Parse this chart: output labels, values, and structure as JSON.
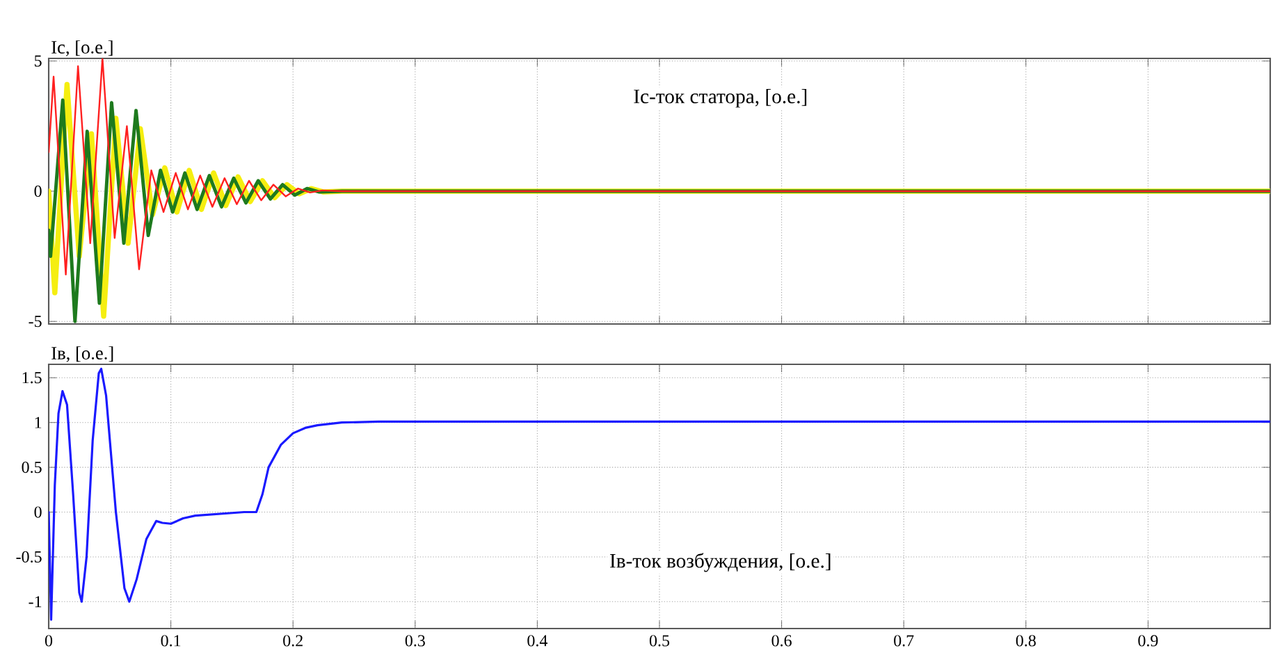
{
  "chart_data": [
    {
      "type": "line",
      "ylabel": "Ic, [о.е.]",
      "annotations": [
        "Ic-ток статора, [о.е.]"
      ],
      "xlim": [
        0,
        1
      ],
      "ylim": [
        -5.1,
        5.1
      ],
      "xticks": [
        0,
        0.1,
        0.2,
        0.3,
        0.4,
        0.5,
        0.6,
        0.7,
        0.8,
        0.9
      ],
      "yticks": [
        -5,
        0,
        5
      ],
      "grid": true,
      "tick_labels": "y",
      "series": [
        {
          "color": "#f5ee10",
          "x": [
            0,
            0.005,
            0.015,
            0.025,
            0.035,
            0.045,
            0.055,
            0.065,
            0.075,
            0.085,
            0.095,
            0.105,
            0.115,
            0.125,
            0.135,
            0.145,
            0.155,
            0.165,
            0.175,
            0.185,
            0.195,
            0.205,
            0.215,
            0.225,
            0.24,
            0.5,
            1.0
          ],
          "values": [
            0,
            -3.9,
            4.1,
            -2.5,
            2.2,
            -4.8,
            2.8,
            -2.0,
            2.4,
            -0.9,
            0.9,
            -0.8,
            0.8,
            -0.7,
            0.7,
            -0.55,
            0.55,
            -0.4,
            0.4,
            -0.25,
            0.25,
            -0.1,
            0.1,
            -0.03,
            0,
            0,
            0
          ]
        },
        {
          "color": "#1e7a1e",
          "x": [
            0,
            0.0015,
            0.0115,
            0.0215,
            0.0315,
            0.0415,
            0.0515,
            0.0615,
            0.0715,
            0.0815,
            0.0915,
            0.1015,
            0.1115,
            0.1215,
            0.1315,
            0.1415,
            0.1515,
            0.1615,
            0.1715,
            0.1815,
            0.1915,
            0.2015,
            0.2115,
            0.2215,
            0.24,
            0.5,
            1.0
          ],
          "values": [
            -1.5,
            -2.5,
            3.5,
            -5.0,
            2.3,
            -4.3,
            3.4,
            -2.0,
            3.1,
            -1.7,
            0.8,
            -0.8,
            0.7,
            -0.7,
            0.6,
            -0.6,
            0.5,
            -0.45,
            0.4,
            -0.3,
            0.25,
            -0.15,
            0.1,
            -0.03,
            0,
            0,
            0
          ]
        },
        {
          "color": "#ff2020",
          "x": [
            0,
            0.004,
            0.014,
            0.024,
            0.034,
            0.044,
            0.054,
            0.064,
            0.074,
            0.084,
            0.094,
            0.104,
            0.114,
            0.124,
            0.134,
            0.144,
            0.154,
            0.164,
            0.174,
            0.184,
            0.194,
            0.204,
            0.214,
            0.224,
            0.24,
            0.5,
            1.0
          ],
          "values": [
            1.5,
            4.4,
            -3.2,
            4.8,
            -2.0,
            5.1,
            -1.8,
            2.5,
            -3.0,
            0.8,
            -0.8,
            0.7,
            -0.7,
            0.6,
            -0.6,
            0.5,
            -0.5,
            0.4,
            -0.35,
            0.25,
            -0.2,
            0.1,
            -0.05,
            0.03,
            0,
            0,
            0
          ]
        }
      ]
    },
    {
      "type": "line",
      "ylabel": "Iв, [о.е.]",
      "annotations": [
        "Iв-ток возбуждения, [о.е.]"
      ],
      "xlim": [
        0,
        1
      ],
      "ylim": [
        -1.3,
        1.65
      ],
      "xticks": [
        0,
        0.1,
        0.2,
        0.3,
        0.4,
        0.5,
        0.6,
        0.7,
        0.8,
        0.9
      ],
      "yticks": [
        -1,
        -0.5,
        0,
        0.5,
        1,
        1.5
      ],
      "grid": true,
      "series": [
        {
          "color": "#1a1aff",
          "x": [
            0,
            0.002,
            0.005,
            0.008,
            0.0113,
            0.015,
            0.02,
            0.025,
            0.027,
            0.031,
            0.036,
            0.041,
            0.043,
            0.047,
            0.055,
            0.062,
            0.066,
            0.072,
            0.08,
            0.088,
            0.093,
            0.1,
            0.11,
            0.12,
            0.14,
            0.16,
            0.17,
            0.175,
            0.18,
            0.19,
            0.2,
            0.21,
            0.22,
            0.24,
            0.27,
            0.5,
            1.0
          ],
          "values": [
            0,
            -1.2,
            0.3,
            1.1,
            1.35,
            1.2,
            0.2,
            -0.9,
            -1.0,
            -0.5,
            0.8,
            1.55,
            1.6,
            1.3,
            0,
            -0.85,
            -1.0,
            -0.75,
            -0.3,
            -0.1,
            -0.12,
            -0.13,
            -0.07,
            -0.04,
            -0.02,
            0,
            0,
            0.2,
            0.5,
            0.75,
            0.88,
            0.94,
            0.97,
            1.0,
            1.01,
            1.01,
            1.01
          ]
        }
      ]
    }
  ]
}
